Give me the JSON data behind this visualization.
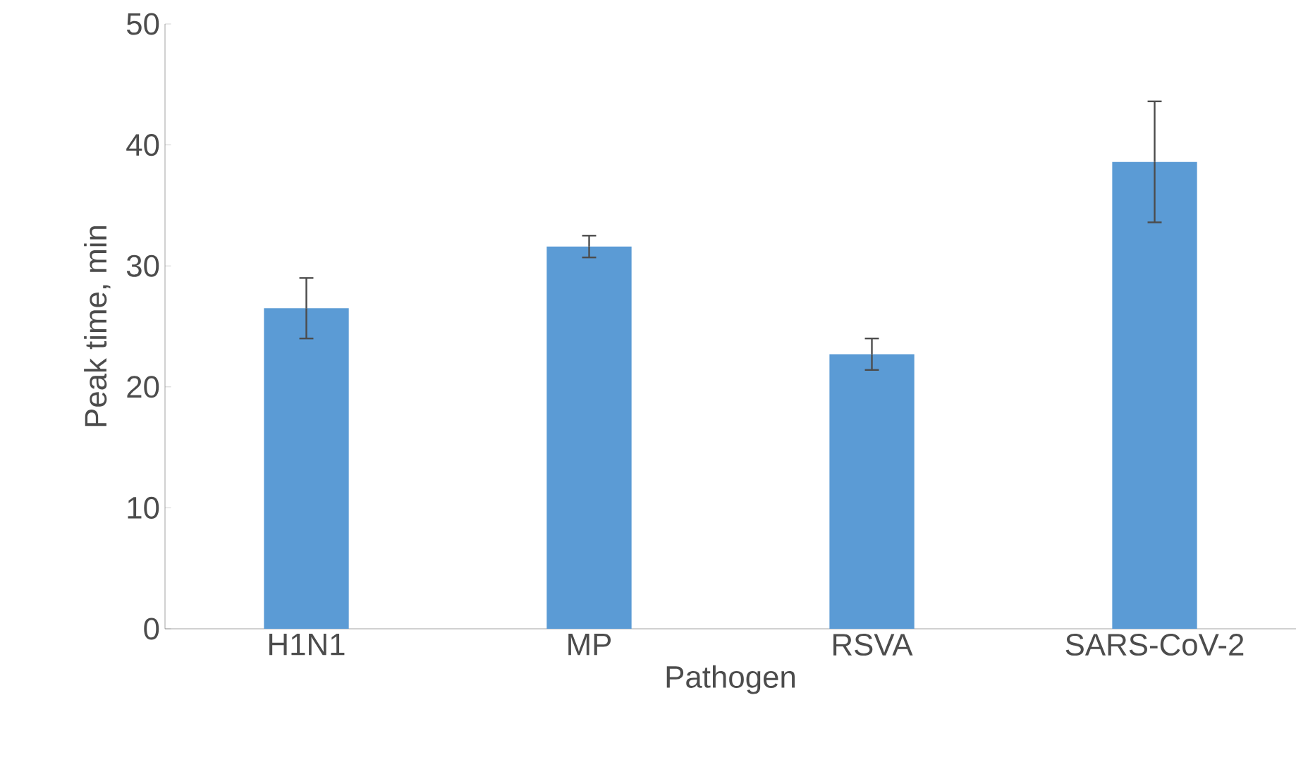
{
  "chart_data": {
    "type": "bar",
    "xlabel": "Pathogen",
    "ylabel": "Peak time, min",
    "categories": [
      "H1N1",
      "MP",
      "RSVA",
      "SARS-CoV-2"
    ],
    "values": [
      26.5,
      31.6,
      22.7,
      38.6
    ],
    "errors": [
      2.5,
      0.9,
      1.3,
      5.0
    ],
    "color": "#5b9bd5",
    "ylim": [
      0,
      50
    ],
    "yticks": [
      0,
      10,
      20,
      30,
      40,
      50
    ]
  }
}
